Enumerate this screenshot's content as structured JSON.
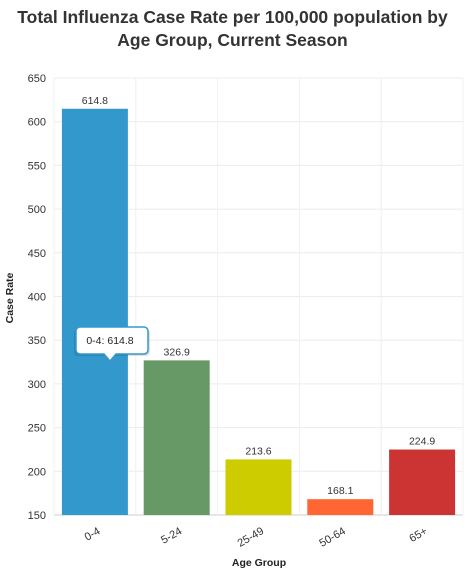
{
  "chart_data": {
    "type": "bar",
    "title_lines": [
      "Total Influenza Case Rate per 100,000 population by",
      "Age Group, Current Season"
    ],
    "xlabel": "Age Group",
    "ylabel": "Case Rate",
    "ylim": [
      150,
      650
    ],
    "yticks": [
      150,
      200,
      250,
      300,
      350,
      400,
      450,
      500,
      550,
      600,
      650
    ],
    "categories": [
      "0-4",
      "5-24",
      "25-49",
      "50-64",
      "65+"
    ],
    "values": [
      614.8,
      326.9,
      213.6,
      168.1,
      224.9
    ],
    "data_labels": [
      "614.8",
      "326.9",
      "213.6",
      "168.1",
      "224.9"
    ],
    "colors": [
      "#3399cc",
      "#669966",
      "#cccc00",
      "#ff6633",
      "#cc3333"
    ],
    "grid": true,
    "tooltip": {
      "text": "0-4: 614.8",
      "category_index": 0,
      "border_color": "#3399cc"
    }
  }
}
